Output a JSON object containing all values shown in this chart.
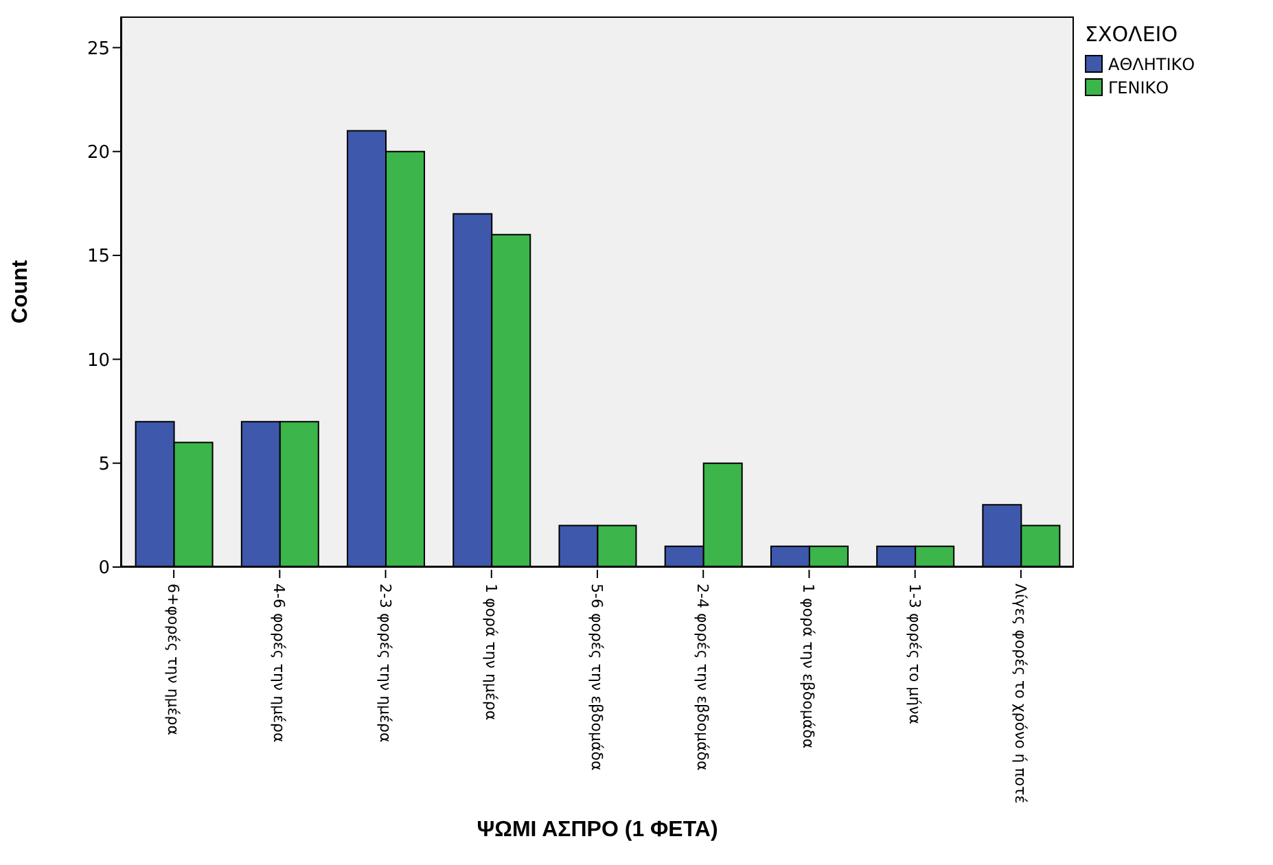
{
  "chart_data": {
    "type": "bar",
    "xlabel": "ΨΩΜΙ ΑΣΠΡΟ (1 ΦΕΤΑ)",
    "ylabel": "Count",
    "legend_title": "ΣΧΟΛΕΙΟ",
    "categories": [
      "6+φορές την ημέρα",
      "4-6 φορές την ημέρα",
      "2-3 φορές την ημέρα",
      "1 φορά την ημέρα",
      "5-6 φορές την εβδομάδα",
      "2-4 φορές την εβδομάδα",
      "1 φορά την εβδομάδα",
      "1-3 φορές το μήνα",
      "Λίγες φορές το χρόνο ή ποτέ"
    ],
    "series": [
      {
        "name": "ΑΘΛΗΤΙΚΟ",
        "color": "#3e58ac",
        "values": [
          7,
          7,
          21,
          17,
          2,
          1,
          1,
          1,
          3
        ]
      },
      {
        "name": "ΓΕΝΙΚΟ",
        "color": "#3cb54a",
        "values": [
          6,
          7,
          20,
          16,
          2,
          5,
          1,
          1,
          2
        ]
      }
    ],
    "ylim": [
      0,
      26.5
    ],
    "yticks": [
      0,
      5,
      10,
      15,
      20,
      25
    ],
    "legend": "top right"
  }
}
